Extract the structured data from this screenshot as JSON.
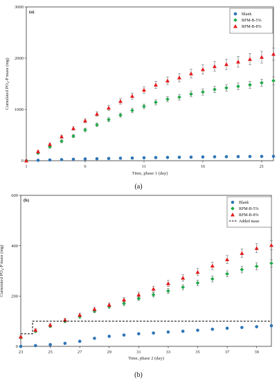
{
  "chart_data": [
    {
      "type": "scatter",
      "panel_tag": "(a)",
      "caption": "(a)",
      "xlabel": "Time, phase 1 (day)",
      "ylabel": "Cumulated PO₄-P mass (mg)",
      "xlim": [
        1,
        22
      ],
      "ylim": [
        0,
        3000
      ],
      "xticks": [
        1,
        6,
        11,
        16,
        21
      ],
      "yticks": [
        0,
        1000,
        2000,
        3000
      ],
      "grid": false,
      "legend_position": "top-right",
      "x": [
        1,
        2,
        3,
        4,
        5,
        6,
        7,
        8,
        9,
        10,
        11,
        12,
        13,
        14,
        15,
        16,
        17,
        18,
        19,
        20,
        21,
        22
      ],
      "series": [
        {
          "name": "Blank",
          "marker": "circle",
          "color": "#2e75b6",
          "values": [
            0,
            8,
            15,
            22,
            28,
            34,
            39,
            44,
            49,
            53,
            57,
            61,
            64,
            67,
            70,
            73,
            76,
            78,
            80,
            82,
            84,
            86
          ],
          "errors": [
            0,
            0,
            0,
            0,
            0,
            0,
            0,
            0,
            0,
            0,
            0,
            0,
            0,
            0,
            0,
            0,
            0,
            0,
            0,
            0,
            0,
            0
          ]
        },
        {
          "name": "RPM-B-5%",
          "marker": "diamond",
          "color": "#22a84a",
          "values": [
            0,
            150,
            270,
            380,
            480,
            600,
            700,
            800,
            890,
            980,
            1060,
            1140,
            1200,
            1240,
            1300,
            1340,
            1390,
            1420,
            1450,
            1480,
            1520,
            1560
          ],
          "errors": [
            0,
            20,
            25,
            30,
            30,
            35,
            35,
            40,
            40,
            45,
            45,
            50,
            50,
            55,
            55,
            60,
            60,
            65,
            65,
            70,
            70,
            75
          ]
        },
        {
          "name": "RPM-B-8%",
          "marker": "triangle",
          "color": "#e31a1c",
          "values": [
            0,
            180,
            320,
            470,
            630,
            780,
            910,
            1030,
            1160,
            1260,
            1380,
            1480,
            1560,
            1620,
            1700,
            1780,
            1840,
            1880,
            1930,
            1980,
            2020,
            2080
          ],
          "errors": [
            0,
            20,
            25,
            30,
            35,
            40,
            45,
            50,
            55,
            60,
            65,
            70,
            75,
            80,
            85,
            90,
            95,
            100,
            105,
            110,
            115,
            120
          ]
        }
      ]
    },
    {
      "type": "scatter",
      "panel_tag": "(b)",
      "caption": "(b)",
      "xlabel": "Time, phase 2 (day)",
      "ylabel": "Cumulated PO₄-P mass (mg)",
      "xlim": [
        23,
        40
      ],
      "ylim": [
        0,
        600
      ],
      "xticks": [
        23,
        25,
        27,
        29,
        31,
        33,
        35,
        37,
        39
      ],
      "yticks": [
        0,
        200,
        400,
        600
      ],
      "grid": false,
      "legend_position": "top-right",
      "x": [
        23,
        24,
        25,
        26,
        27,
        28,
        29,
        30,
        31,
        32,
        33,
        34,
        35,
        36,
        37,
        38,
        39,
        40
      ],
      "series": [
        {
          "name": "Blank",
          "marker": "circle",
          "color": "#2e75b6",
          "values": [
            0,
            3,
            7,
            12,
            20,
            32,
            40,
            45,
            50,
            53,
            57,
            60,
            64,
            68,
            72,
            75,
            78,
            82
          ],
          "errors": [
            0,
            0,
            0,
            0,
            0,
            0,
            0,
            0,
            0,
            0,
            0,
            0,
            0,
            0,
            0,
            0,
            0,
            0
          ]
        },
        {
          "name": "RPM-B-5%",
          "marker": "diamond",
          "color": "#22a84a",
          "values": [
            35,
            60,
            80,
            100,
            118,
            140,
            158,
            170,
            190,
            205,
            220,
            235,
            252,
            268,
            288,
            305,
            318,
            330
          ],
          "errors": [
            4,
            5,
            5,
            6,
            6,
            7,
            7,
            8,
            8,
            9,
            10,
            10,
            11,
            12,
            12,
            13,
            14,
            14
          ]
        },
        {
          "name": "RPM-B-8%",
          "marker": "triangle",
          "color": "#e31a1c",
          "values": [
            38,
            65,
            85,
            105,
            125,
            148,
            165,
            185,
            205,
            228,
            250,
            272,
            295,
            320,
            345,
            370,
            390,
            402
          ],
          "errors": [
            4,
            5,
            6,
            6,
            7,
            7,
            8,
            9,
            10,
            11,
            12,
            13,
            14,
            15,
            16,
            17,
            18,
            18
          ]
        },
        {
          "name": "Added mass",
          "line_style": "dashed",
          "color": "#000000",
          "step_x": [
            23,
            23.8,
            23.8,
            40
          ],
          "step_y": [
            50,
            50,
            100,
            100
          ]
        }
      ]
    }
  ]
}
